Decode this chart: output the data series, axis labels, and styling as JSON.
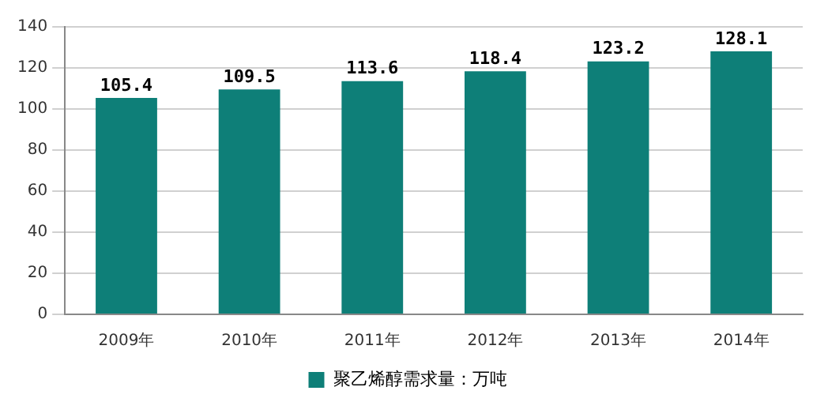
{
  "chart_data": {
    "type": "bar",
    "categories": [
      "2009年",
      "2010年",
      "2011年",
      "2012年",
      "2013年",
      "2014年"
    ],
    "series": [
      {
        "name": "聚乙烯醇需求量：万吨",
        "color": "#0e7f78",
        "values": [
          105.4,
          109.5,
          113.6,
          118.4,
          123.2,
          128.1
        ]
      }
    ],
    "ylim": [
      0,
      140
    ],
    "yticks": [
      0,
      20,
      40,
      60,
      80,
      100,
      120,
      140
    ],
    "grid": "y",
    "legend": "bottom",
    "data_labels": true
  }
}
